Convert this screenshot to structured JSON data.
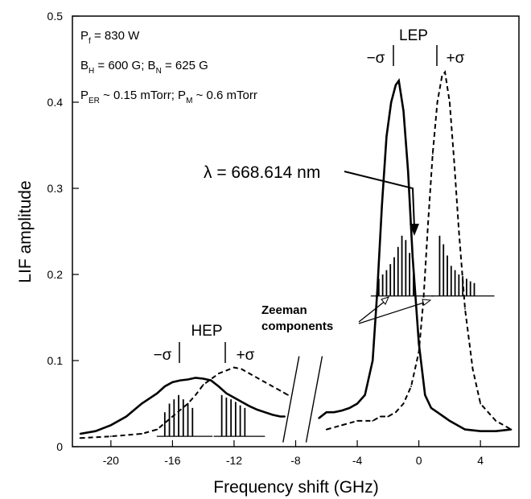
{
  "chart_data": {
    "type": "line",
    "xlabel": "Frequency shift (GHz)",
    "ylabel": "LIF amplitude",
    "xlim": [
      -22.5,
      6.5
    ],
    "ylim": [
      0,
      0.5
    ],
    "axis_break": [
      -8.3,
      -6.8
    ],
    "x_ticks": [
      "-20",
      "-16",
      "-12",
      "-8",
      "-4",
      "0",
      "4"
    ],
    "y_ticks": [
      "0",
      "0.1",
      "0.2",
      "0.3",
      "0.4",
      "0.5"
    ],
    "conditions": [
      {
        "main": "P",
        "sub": "f",
        "rest": " = 830 W"
      },
      {
        "main": "B",
        "sub": "H",
        "rest": " = 600 G;  ",
        "main2": "B",
        "sub2": "N",
        "rest2": " = 625 G"
      },
      {
        "main": "P",
        "sub": "ER",
        "rest": " ~ 0.15 mTorr;  ",
        "main2": "P",
        "sub2": "M",
        "rest2": " ~ 0.6 mTorr"
      }
    ],
    "wavelength_label": "λ = 668.614 nm",
    "zeeman_label": [
      "Zeeman",
      "components"
    ],
    "groups": [
      {
        "name": "LEP",
        "minus": "−σ",
        "plus": "+σ"
      },
      {
        "name": "HEP",
        "minus": "−σ",
        "plus": "+σ"
      }
    ],
    "series": [
      {
        "style": "solid",
        "x": [
          -22.0,
          -21.0,
          -20.0,
          -19.0,
          -18.0,
          -17.0,
          -16.5,
          -16.0,
          -15.5,
          -15.0,
          -14.5,
          -14.0,
          -13.5,
          -13.0,
          -12.5,
          -12.0,
          -11.5,
          -11.0,
          -10.5,
          -10.0,
          -9.5,
          -9.0,
          -8.7,
          -7.0,
          -6.5,
          -6.0,
          -5.5,
          -5.0,
          -4.5,
          -4.0,
          -3.5,
          -3.0,
          -2.7,
          -2.4,
          -2.1,
          -1.8,
          -1.5,
          -1.3,
          -1.0,
          -0.7,
          -0.4,
          0.0,
          0.4,
          0.8,
          1.2,
          1.6,
          2.0,
          2.5,
          3.0,
          4.0,
          5.0,
          6.0
        ],
        "y": [
          0.015,
          0.018,
          0.025,
          0.035,
          0.05,
          0.062,
          0.07,
          0.075,
          0.077,
          0.078,
          0.08,
          0.079,
          0.077,
          0.07,
          0.062,
          0.057,
          0.052,
          0.047,
          0.043,
          0.04,
          0.037,
          0.035,
          0.035,
          0.03,
          0.033,
          0.04,
          0.04,
          0.042,
          0.045,
          0.05,
          0.06,
          0.1,
          0.18,
          0.28,
          0.36,
          0.4,
          0.42,
          0.425,
          0.39,
          0.32,
          0.22,
          0.12,
          0.06,
          0.045,
          0.04,
          0.035,
          0.03,
          0.025,
          0.02,
          0.018,
          0.018,
          0.02
        ]
      },
      {
        "style": "dashed",
        "x": [
          -22.0,
          -20.0,
          -18.0,
          -17.0,
          -16.0,
          -15.0,
          -14.5,
          -14.0,
          -13.0,
          -12.0,
          -11.5,
          -11.0,
          -10.0,
          -9.0,
          -8.5,
          -7.0,
          -6.0,
          -5.0,
          -4.0,
          -3.0,
          -2.5,
          -2.0,
          -1.5,
          -1.0,
          -0.5,
          0.0,
          0.3,
          0.6,
          0.9,
          1.2,
          1.5,
          1.7,
          2.0,
          2.3,
          2.6,
          3.0,
          3.5,
          4.0,
          5.0,
          6.0
        ],
        "y": [
          0.01,
          0.012,
          0.015,
          0.02,
          0.035,
          0.05,
          0.06,
          0.072,
          0.085,
          0.092,
          0.09,
          0.085,
          0.075,
          0.065,
          0.06,
          0.02,
          0.02,
          0.025,
          0.03,
          0.03,
          0.035,
          0.035,
          0.04,
          0.05,
          0.07,
          0.11,
          0.17,
          0.26,
          0.34,
          0.4,
          0.43,
          0.435,
          0.4,
          0.33,
          0.25,
          0.16,
          0.09,
          0.05,
          0.03,
          0.02
        ]
      }
    ],
    "zeeman_sticks": [
      {
        "baseline_y": 0.175,
        "x": [
          -2.6,
          -2.35,
          -2.1,
          -1.85,
          -1.6,
          -1.35,
          -1.1,
          -0.85,
          -0.6,
          -0.35
        ],
        "y": [
          0.195,
          0.2,
          0.205,
          0.212,
          0.22,
          0.232,
          0.245,
          0.24,
          0.225,
          0.2
        ]
      },
      {
        "baseline_y": 0.175,
        "x": [
          1.35,
          1.6,
          1.85,
          2.1,
          2.35,
          2.6,
          2.85,
          3.1,
          3.35,
          3.6
        ],
        "y": [
          0.245,
          0.235,
          0.222,
          0.21,
          0.205,
          0.2,
          0.198,
          0.195,
          0.192,
          0.19
        ]
      },
      {
        "baseline_y": 0.012,
        "x": [
          -16.5,
          -16.2,
          -15.9,
          -15.6,
          -15.3,
          -15.0,
          -14.7
        ],
        "y": [
          0.04,
          0.05,
          0.055,
          0.06,
          0.055,
          0.05,
          0.045
        ]
      },
      {
        "baseline_y": 0.012,
        "x": [
          -12.8,
          -12.5,
          -12.2,
          -11.9,
          -11.6,
          -11.3
        ],
        "y": [
          0.06,
          0.057,
          0.055,
          0.052,
          0.048,
          0.045
        ]
      }
    ]
  }
}
